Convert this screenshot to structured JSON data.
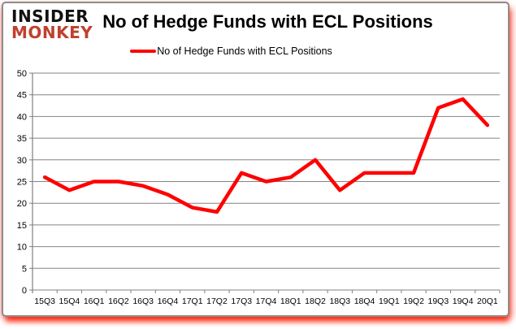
{
  "logo": {
    "line1": "INSIDER",
    "line2": "MONKEY"
  },
  "header": {
    "title": "No of Hedge Funds with ECL Positions"
  },
  "legend": {
    "label": "No of Hedge Funds with ECL Positions"
  },
  "chart_data": {
    "type": "line",
    "title": "No of Hedge Funds with ECL Positions",
    "categories": [
      "15Q3",
      "15Q4",
      "16Q1",
      "16Q2",
      "16Q3",
      "16Q4",
      "17Q1",
      "17Q2",
      "17Q3",
      "17Q4",
      "18Q1",
      "18Q2",
      "18Q3",
      "18Q4",
      "19Q1",
      "19Q2",
      "19Q3",
      "19Q4",
      "20Q1"
    ],
    "series": [
      {
        "name": "No of Hedge Funds with ECL Positions",
        "values": [
          26,
          23,
          25,
          25,
          24,
          22,
          19,
          18,
          27,
          25,
          26,
          30,
          23,
          27,
          27,
          27,
          42,
          44,
          38
        ]
      }
    ],
    "xlabel": "",
    "ylabel": "",
    "ylim": [
      0,
      50
    ],
    "ytick_step": 5,
    "grid": true,
    "legend_position": "top"
  },
  "colors": {
    "line": "#ff0000",
    "grid": "#848484",
    "axis": "#808080",
    "card_border": "#8c8c8c",
    "logo_monkey": "#c0402e",
    "logo_insider": "#111111",
    "shadow_glow": "#ff1900"
  }
}
